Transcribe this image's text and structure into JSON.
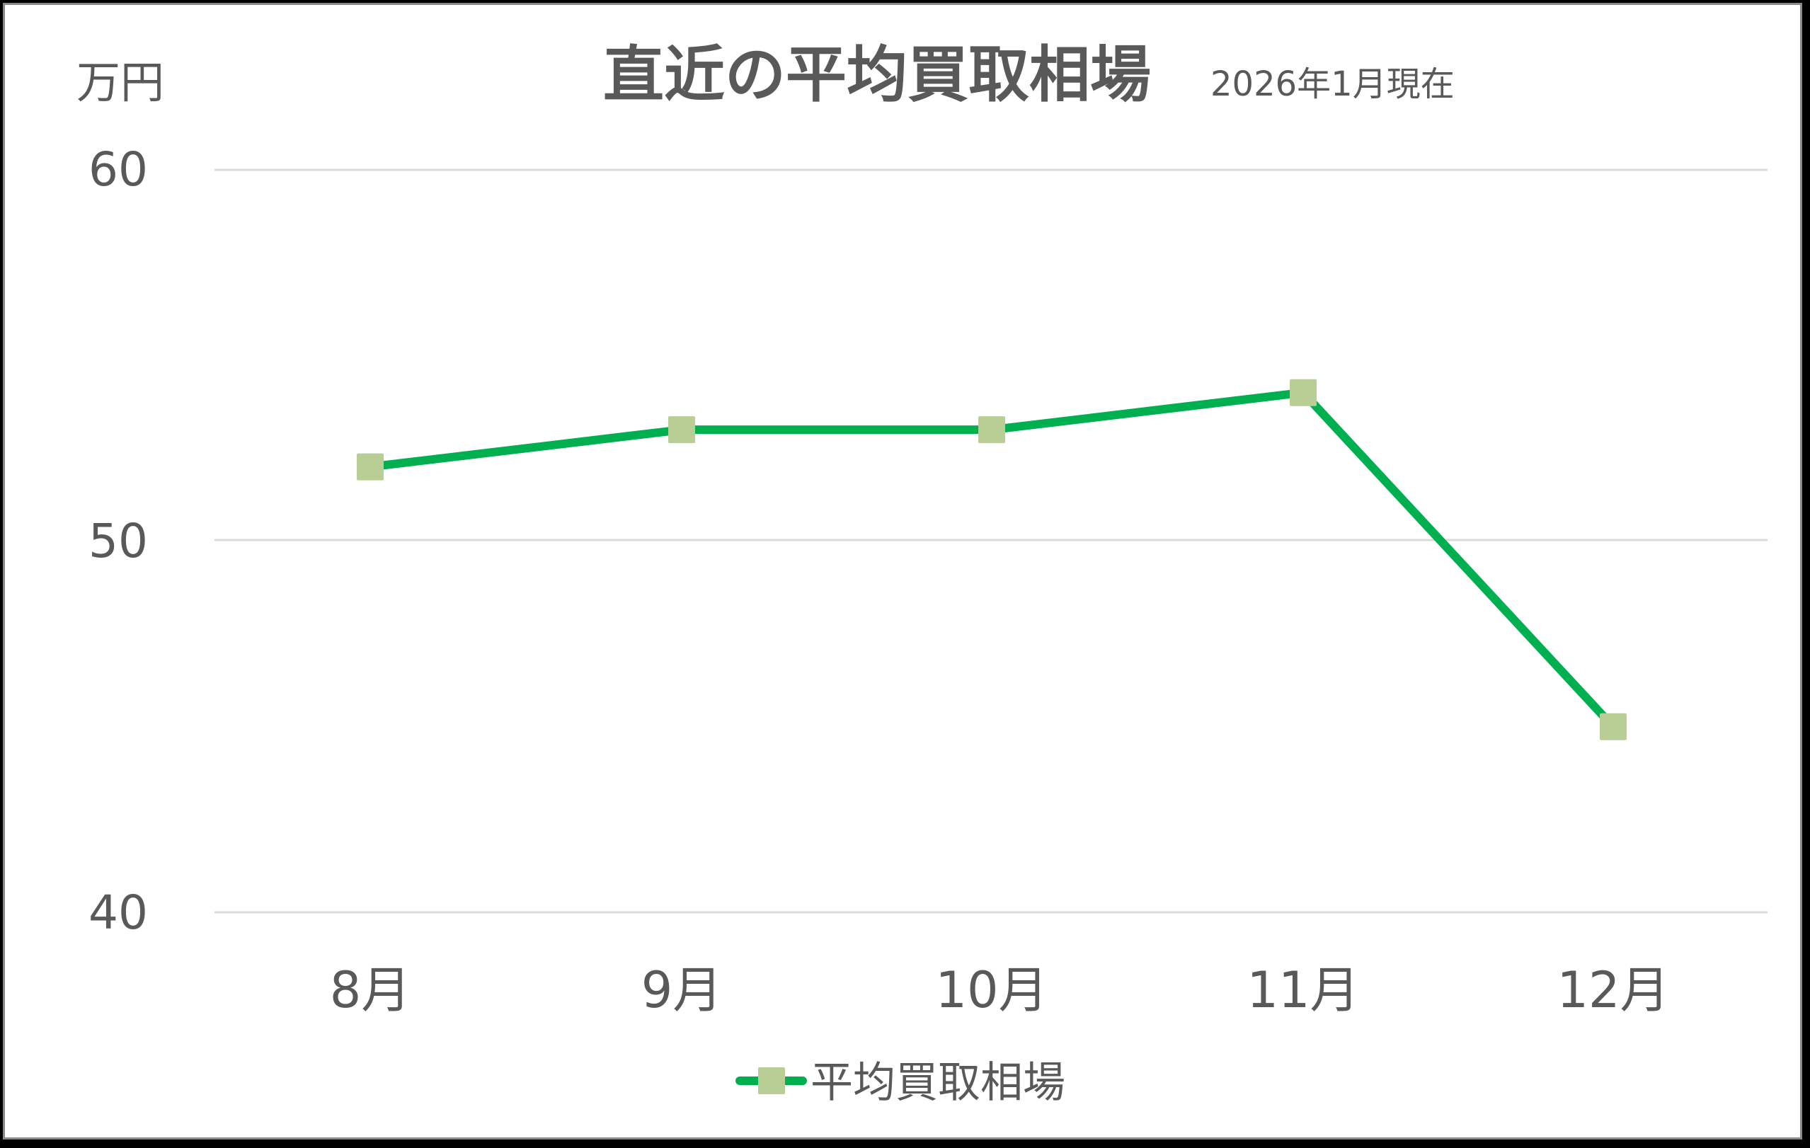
{
  "chart_data": {
    "type": "line",
    "title": "直近の平均買取相場",
    "subtitle": "2026年1月現在",
    "xlabel": "",
    "ylabel": "万円",
    "categories": [
      "8月",
      "9月",
      "10月",
      "11月",
      "12月"
    ],
    "series": [
      {
        "name": "平均買取相場",
        "values": [
          52,
          53,
          53,
          54,
          45
        ],
        "line_color": "#00B050",
        "marker": "square",
        "marker_color": "#B9CE95"
      }
    ],
    "ylim": [
      40,
      60
    ],
    "yticks": [
      40,
      50,
      60
    ],
    "grid": true,
    "legend_position": "bottom"
  },
  "labels": {
    "title": "直近の平均買取相場",
    "subtitle": "2026年1月現在",
    "unit": "万円",
    "yticks": [
      "60",
      "50",
      "40"
    ],
    "xticks": [
      "8月",
      "9月",
      "10月",
      "11月",
      "12月"
    ],
    "legend": "平均買取相場"
  }
}
